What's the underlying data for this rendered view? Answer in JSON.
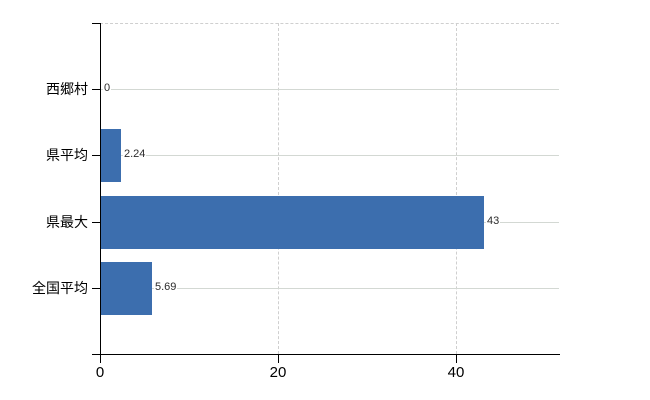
{
  "chart": {
    "background": "#ffffff",
    "bar_color": "#3c6eae",
    "category_gridline_color": "#d3d8d3",
    "dashed_gridline_color": "#cfcfcf",
    "axis_color": "#000000",
    "category_text_color": "#000000",
    "tick_text_color": "#000000",
    "value_text_color": "#2b2b2b"
  },
  "chart_data": {
    "type": "bar",
    "orientation": "horizontal",
    "categories": [
      "西郷村",
      "県平均",
      "県最大",
      "全国平均"
    ],
    "values": [
      0,
      2.24,
      43,
      5.69
    ],
    "value_labels": [
      "0",
      "2.24",
      "43",
      "5.69"
    ],
    "x_ticks": [
      0,
      20,
      40
    ],
    "x_tick_labels": [
      "0",
      "20",
      "40"
    ],
    "xlim": [
      0,
      51.7
    ],
    "grid": true,
    "legend": "none"
  }
}
